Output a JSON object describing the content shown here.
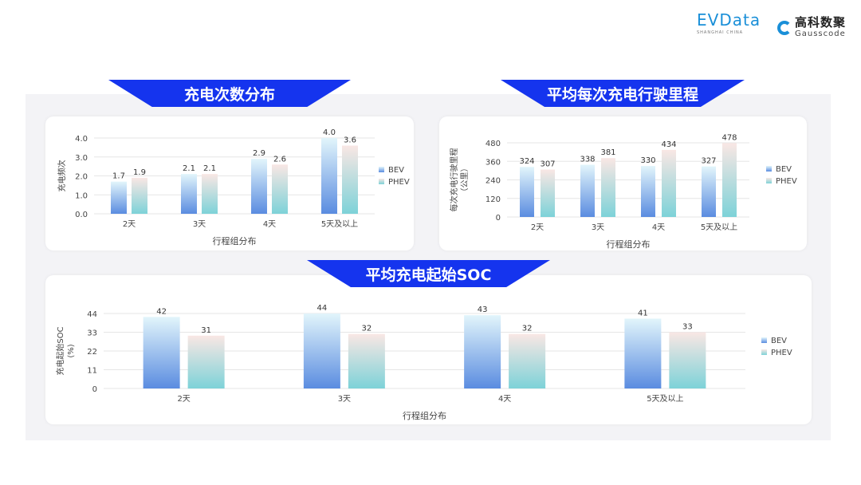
{
  "logos": {
    "evdata": "EVData",
    "evdata_sub": "SHANGHAI CHINA",
    "gauss_cn": "高科数聚",
    "gauss_en": "Gausscode"
  },
  "colors": {
    "banner": "#1534ee",
    "bev_top": "#e2f5fb",
    "bev_bottom": "#5a8ce0",
    "phev_top": "#f9e7e4",
    "phev_bottom": "#7dd2d8"
  },
  "chart_data": [
    {
      "type": "bar",
      "title": "充电次数分布",
      "categories": [
        "2天",
        "3天",
        "4天",
        "5天及以上"
      ],
      "series": [
        {
          "name": "BEV",
          "values": [
            1.7,
            2.1,
            2.9,
            4.0
          ]
        },
        {
          "name": "PHEV",
          "values": [
            1.9,
            2.1,
            2.6,
            3.6
          ]
        }
      ],
      "value_labels": [
        [
          "1.7",
          "2.1",
          "2.9",
          "4.0"
        ],
        [
          "1.9",
          "2.1",
          "2.6",
          "3.6"
        ]
      ],
      "xlabel": "行程组分布",
      "ylabel": "充电频次",
      "ylim": [
        0,
        4
      ],
      "yticks": [
        "0.0",
        "1.0",
        "2.0",
        "3.0",
        "4.0"
      ],
      "grid": true,
      "legend": "right"
    },
    {
      "type": "bar",
      "title": "平均每次充电行驶里程",
      "categories": [
        "2天",
        "3天",
        "4天",
        "5天及以上"
      ],
      "series": [
        {
          "name": "BEV",
          "values": [
            324,
            338,
            330,
            327
          ]
        },
        {
          "name": "PHEV",
          "values": [
            307,
            381,
            434,
            478
          ]
        }
      ],
      "value_labels": [
        [
          "324",
          "338",
          "330",
          "327"
        ],
        [
          "307",
          "381",
          "434",
          "478"
        ]
      ],
      "xlabel": "行程组分布",
      "ylabel": "每次充电行驶里程",
      "ylabel2": "（公里）",
      "ylim": [
        0,
        480
      ],
      "yticks": [
        "0",
        "120",
        "240",
        "360",
        "480"
      ],
      "grid": true,
      "legend": "right"
    },
    {
      "type": "bar",
      "title": "平均充电起始SOC",
      "categories": [
        "2天",
        "3天",
        "4天",
        "5天及以上"
      ],
      "series": [
        {
          "name": "BEV",
          "values": [
            42,
            44,
            43,
            41
          ]
        },
        {
          "name": "PHEV",
          "values": [
            31,
            32,
            32,
            33
          ]
        }
      ],
      "value_labels": [
        [
          "42",
          "44",
          "43",
          "41"
        ],
        [
          "31",
          "32",
          "32",
          "33"
        ]
      ],
      "xlabel": "行程组分布",
      "ylabel": "充电起始SOC",
      "ylabel2": "(%)",
      "ylim": [
        0,
        44
      ],
      "yticks": [
        "0",
        "11",
        "22",
        "33",
        "44"
      ],
      "grid": true,
      "legend": "right"
    }
  ]
}
